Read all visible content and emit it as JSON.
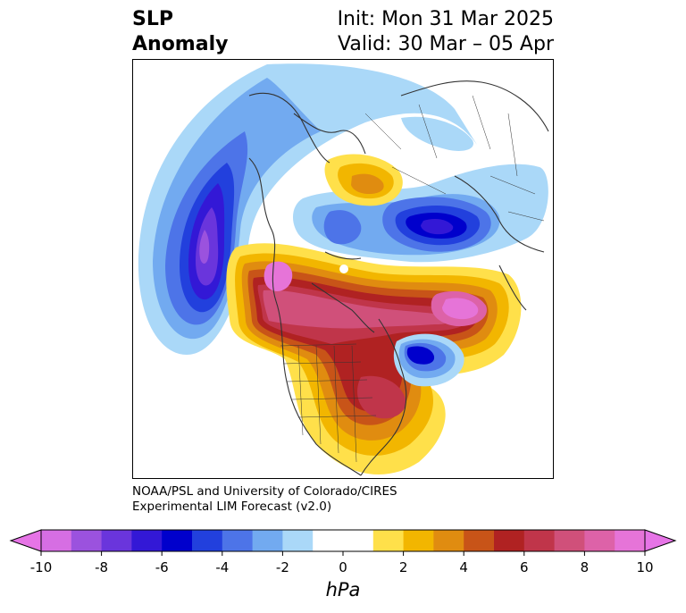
{
  "title": {
    "left_line1": "SLP",
    "left_line2": "Anomaly",
    "right_line1": "Init: Mon 31 Mar 2025",
    "right_line2": "Valid: 30 Mar – 05 Apr"
  },
  "credit": {
    "line1": "NOAA/PSL and University of Colorado/CIRES",
    "line2": "Experimental LIM Forecast (v2.0)"
  },
  "colorbar": {
    "unit": "hPa",
    "ticks": [
      "-10",
      "-8",
      "-6",
      "-4",
      "-2",
      "0",
      "2",
      "4",
      "6",
      "8",
      "10"
    ],
    "colors": [
      "#d66ee3",
      "#9b52de",
      "#6a35dc",
      "#3318d6",
      "#0000cc",
      "#2240dd",
      "#4d74e8",
      "#72aaf0",
      "#aad8f8",
      "#ffffff",
      "#ffffff",
      "#ffe04a",
      "#f2b600",
      "#e08c10",
      "#c85418",
      "#b02222",
      "#c0354a",
      "#d0507a",
      "#dd62a8",
      "#e674d8"
    ],
    "under_color": "#e674e6",
    "over_color": "#e674e6"
  }
}
